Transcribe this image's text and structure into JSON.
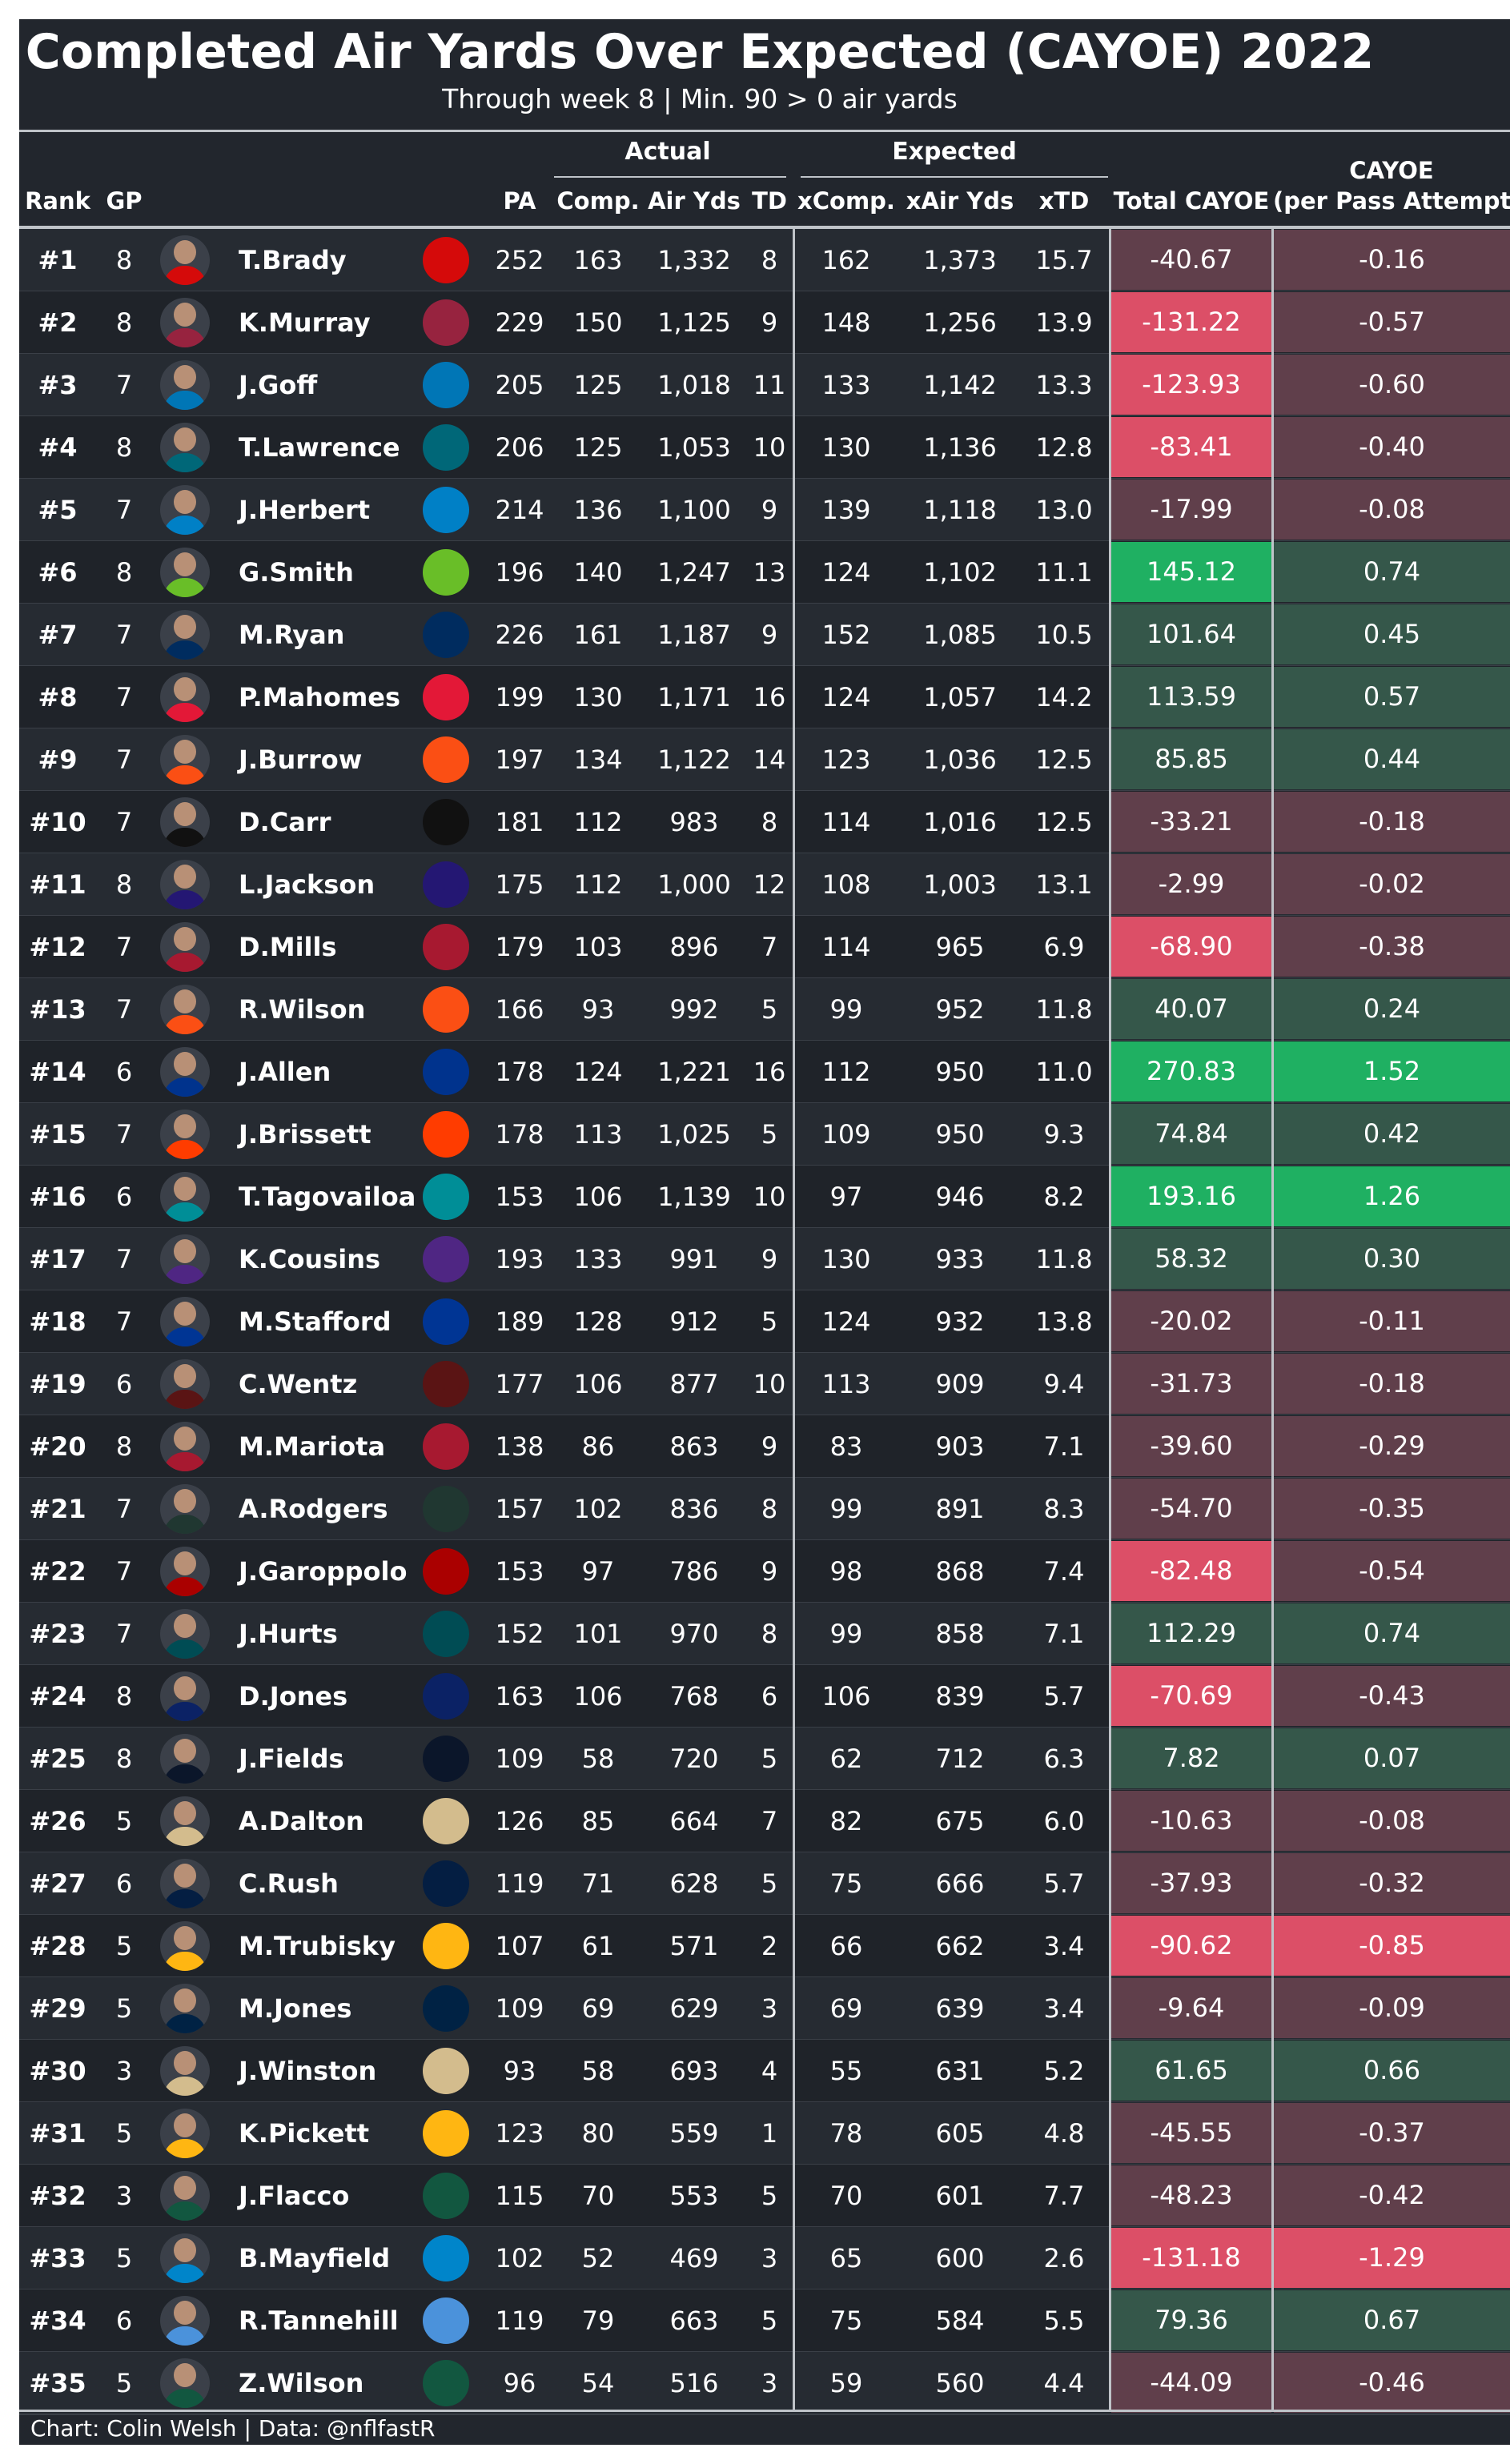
{
  "title": "Completed Air Yards Over Expected (CAYOE) 2022",
  "subtitle": "Through week 8 | Min. 90 > 0 air yards",
  "groups": {
    "actual": "Actual",
    "expected": "Expected"
  },
  "columns": {
    "rank": "Rank",
    "gp": "GP",
    "pa": "PA",
    "comp": "Comp.",
    "air_yds": "Air Yds",
    "td": "TD",
    "xcomp": "xComp.",
    "xair_yds": "xAir Yds",
    "xtd": "xTD",
    "total_cayoe": "Total CAYOE",
    "cayoe_line1": "CAYOE",
    "cayoe_line2": "(per Pass Attempt)"
  },
  "footer": "Chart: Colin Welsh | Data: @nflfastR",
  "colors": {
    "panel": "#22262d",
    "strong_neg": "#dc4f67",
    "weak_neg": "#603f4b",
    "mid_neg": "#8a3a4f",
    "weak_pos": "#35574a",
    "strong_pos": "#1fb062"
  },
  "chart_data": {
    "type": "table",
    "rows": [
      {
        "rank": "#1",
        "gp": "8",
        "player": "T.Brady",
        "team_logo": "buccaneers-logo",
        "team_color": "#d50a0a",
        "pa": "252",
        "comp": "163",
        "air_yds": "1,332",
        "td": "8",
        "xcomp": "162",
        "xair_yds": "1,373",
        "xtd": "15.7",
        "total_cayoe": "-40.67",
        "per_pa": "-0.16"
      },
      {
        "rank": "#2",
        "gp": "8",
        "player": "K.Murray",
        "team_logo": "cardinals-logo",
        "team_color": "#97233f",
        "pa": "229",
        "comp": "150",
        "air_yds": "1,125",
        "td": "9",
        "xcomp": "148",
        "xair_yds": "1,256",
        "xtd": "13.9",
        "total_cayoe": "-131.22",
        "per_pa": "-0.57"
      },
      {
        "rank": "#3",
        "gp": "7",
        "player": "J.Goff",
        "team_logo": "lions-logo",
        "team_color": "#0076b6",
        "pa": "205",
        "comp": "125",
        "air_yds": "1,018",
        "td": "11",
        "xcomp": "133",
        "xair_yds": "1,142",
        "xtd": "13.3",
        "total_cayoe": "-123.93",
        "per_pa": "-0.60"
      },
      {
        "rank": "#4",
        "gp": "8",
        "player": "T.Lawrence",
        "team_logo": "jaguars-logo",
        "team_color": "#006778",
        "pa": "206",
        "comp": "125",
        "air_yds": "1,053",
        "td": "10",
        "xcomp": "130",
        "xair_yds": "1,136",
        "xtd": "12.8",
        "total_cayoe": "-83.41",
        "per_pa": "-0.40"
      },
      {
        "rank": "#5",
        "gp": "7",
        "player": "J.Herbert",
        "team_logo": "chargers-logo",
        "team_color": "#0080c6",
        "pa": "214",
        "comp": "136",
        "air_yds": "1,100",
        "td": "9",
        "xcomp": "139",
        "xair_yds": "1,118",
        "xtd": "13.0",
        "total_cayoe": "-17.99",
        "per_pa": "-0.08"
      },
      {
        "rank": "#6",
        "gp": "8",
        "player": "G.Smith",
        "team_logo": "seahawks-logo",
        "team_color": "#69be28",
        "pa": "196",
        "comp": "140",
        "air_yds": "1,247",
        "td": "13",
        "xcomp": "124",
        "xair_yds": "1,102",
        "xtd": "11.1",
        "total_cayoe": "145.12",
        "per_pa": "0.74"
      },
      {
        "rank": "#7",
        "gp": "7",
        "player": "M.Ryan",
        "team_logo": "colts-logo",
        "team_color": "#002c5f",
        "pa": "226",
        "comp": "161",
        "air_yds": "1,187",
        "td": "9",
        "xcomp": "152",
        "xair_yds": "1,085",
        "xtd": "10.5",
        "total_cayoe": "101.64",
        "per_pa": "0.45"
      },
      {
        "rank": "#8",
        "gp": "7",
        "player": "P.Mahomes",
        "team_logo": "chiefs-logo",
        "team_color": "#e31837",
        "pa": "199",
        "comp": "130",
        "air_yds": "1,171",
        "td": "16",
        "xcomp": "124",
        "xair_yds": "1,057",
        "xtd": "14.2",
        "total_cayoe": "113.59",
        "per_pa": "0.57"
      },
      {
        "rank": "#9",
        "gp": "7",
        "player": "J.Burrow",
        "team_logo": "bengals-logo",
        "team_color": "#fb4f14",
        "pa": "197",
        "comp": "134",
        "air_yds": "1,122",
        "td": "14",
        "xcomp": "123",
        "xair_yds": "1,036",
        "xtd": "12.5",
        "total_cayoe": "85.85",
        "per_pa": "0.44"
      },
      {
        "rank": "#10",
        "gp": "7",
        "player": "D.Carr",
        "team_logo": "raiders-logo",
        "team_color": "#111111",
        "pa": "181",
        "comp": "112",
        "air_yds": "983",
        "td": "8",
        "xcomp": "114",
        "xair_yds": "1,016",
        "xtd": "12.5",
        "total_cayoe": "-33.21",
        "per_pa": "-0.18"
      },
      {
        "rank": "#11",
        "gp": "8",
        "player": "L.Jackson",
        "team_logo": "ravens-logo",
        "team_color": "#241773",
        "pa": "175",
        "comp": "112",
        "air_yds": "1,000",
        "td": "12",
        "xcomp": "108",
        "xair_yds": "1,003",
        "xtd": "13.1",
        "total_cayoe": "-2.99",
        "per_pa": "-0.02"
      },
      {
        "rank": "#12",
        "gp": "7",
        "player": "D.Mills",
        "team_logo": "texans-logo",
        "team_color": "#a71930",
        "pa": "179",
        "comp": "103",
        "air_yds": "896",
        "td": "7",
        "xcomp": "114",
        "xair_yds": "965",
        "xtd": "6.9",
        "total_cayoe": "-68.90",
        "per_pa": "-0.38"
      },
      {
        "rank": "#13",
        "gp": "7",
        "player": "R.Wilson",
        "team_logo": "broncos-logo",
        "team_color": "#fb4f14",
        "pa": "166",
        "comp": "93",
        "air_yds": "992",
        "td": "5",
        "xcomp": "99",
        "xair_yds": "952",
        "xtd": "11.8",
        "total_cayoe": "40.07",
        "per_pa": "0.24"
      },
      {
        "rank": "#14",
        "gp": "6",
        "player": "J.Allen",
        "team_logo": "bills-logo",
        "team_color": "#00338d",
        "pa": "178",
        "comp": "124",
        "air_yds": "1,221",
        "td": "16",
        "xcomp": "112",
        "xair_yds": "950",
        "xtd": "11.0",
        "total_cayoe": "270.83",
        "per_pa": "1.52"
      },
      {
        "rank": "#15",
        "gp": "7",
        "player": "J.Brissett",
        "team_logo": "browns-logo",
        "team_color": "#ff3c00",
        "pa": "178",
        "comp": "113",
        "air_yds": "1,025",
        "td": "5",
        "xcomp": "109",
        "xair_yds": "950",
        "xtd": "9.3",
        "total_cayoe": "74.84",
        "per_pa": "0.42"
      },
      {
        "rank": "#16",
        "gp": "6",
        "player": "T.Tagovailoa",
        "team_logo": "dolphins-logo",
        "team_color": "#008e97",
        "pa": "153",
        "comp": "106",
        "air_yds": "1,139",
        "td": "10",
        "xcomp": "97",
        "xair_yds": "946",
        "xtd": "8.2",
        "total_cayoe": "193.16",
        "per_pa": "1.26"
      },
      {
        "rank": "#17",
        "gp": "7",
        "player": "K.Cousins",
        "team_logo": "vikings-logo",
        "team_color": "#4f2683",
        "pa": "193",
        "comp": "133",
        "air_yds": "991",
        "td": "9",
        "xcomp": "130",
        "xair_yds": "933",
        "xtd": "11.8",
        "total_cayoe": "58.32",
        "per_pa": "0.30"
      },
      {
        "rank": "#18",
        "gp": "7",
        "player": "M.Stafford",
        "team_logo": "rams-logo",
        "team_color": "#003594",
        "pa": "189",
        "comp": "128",
        "air_yds": "912",
        "td": "5",
        "xcomp": "124",
        "xair_yds": "932",
        "xtd": "13.8",
        "total_cayoe": "-20.02",
        "per_pa": "-0.11"
      },
      {
        "rank": "#19",
        "gp": "6",
        "player": "C.Wentz",
        "team_logo": "commanders-logo",
        "team_color": "#5a1414",
        "pa": "177",
        "comp": "106",
        "air_yds": "877",
        "td": "10",
        "xcomp": "113",
        "xair_yds": "909",
        "xtd": "9.4",
        "total_cayoe": "-31.73",
        "per_pa": "-0.18"
      },
      {
        "rank": "#20",
        "gp": "8",
        "player": "M.Mariota",
        "team_logo": "falcons-logo",
        "team_color": "#a71930",
        "pa": "138",
        "comp": "86",
        "air_yds": "863",
        "td": "9",
        "xcomp": "83",
        "xair_yds": "903",
        "xtd": "7.1",
        "total_cayoe": "-39.60",
        "per_pa": "-0.29"
      },
      {
        "rank": "#21",
        "gp": "7",
        "player": "A.Rodgers",
        "team_logo": "packers-logo",
        "team_color": "#203731",
        "pa": "157",
        "comp": "102",
        "air_yds": "836",
        "td": "8",
        "xcomp": "99",
        "xair_yds": "891",
        "xtd": "8.3",
        "total_cayoe": "-54.70",
        "per_pa": "-0.35"
      },
      {
        "rank": "#22",
        "gp": "7",
        "player": "J.Garoppolo",
        "team_logo": "49ers-logo",
        "team_color": "#aa0000",
        "pa": "153",
        "comp": "97",
        "air_yds": "786",
        "td": "9",
        "xcomp": "98",
        "xair_yds": "868",
        "xtd": "7.4",
        "total_cayoe": "-82.48",
        "per_pa": "-0.54"
      },
      {
        "rank": "#23",
        "gp": "7",
        "player": "J.Hurts",
        "team_logo": "eagles-logo",
        "team_color": "#004c54",
        "pa": "152",
        "comp": "101",
        "air_yds": "970",
        "td": "8",
        "xcomp": "99",
        "xair_yds": "858",
        "xtd": "7.1",
        "total_cayoe": "112.29",
        "per_pa": "0.74"
      },
      {
        "rank": "#24",
        "gp": "8",
        "player": "D.Jones",
        "team_logo": "giants-logo",
        "team_color": "#0b2265",
        "pa": "163",
        "comp": "106",
        "air_yds": "768",
        "td": "6",
        "xcomp": "106",
        "xair_yds": "839",
        "xtd": "5.7",
        "total_cayoe": "-70.69",
        "per_pa": "-0.43"
      },
      {
        "rank": "#25",
        "gp": "8",
        "player": "J.Fields",
        "team_logo": "bears-logo",
        "team_color": "#0b162a",
        "pa": "109",
        "comp": "58",
        "air_yds": "720",
        "td": "5",
        "xcomp": "62",
        "xair_yds": "712",
        "xtd": "6.3",
        "total_cayoe": "7.82",
        "per_pa": "0.07"
      },
      {
        "rank": "#26",
        "gp": "5",
        "player": "A.Dalton",
        "team_logo": "saints-logo",
        "team_color": "#d3bc8d",
        "pa": "126",
        "comp": "85",
        "air_yds": "664",
        "td": "7",
        "xcomp": "82",
        "xair_yds": "675",
        "xtd": "6.0",
        "total_cayoe": "-10.63",
        "per_pa": "-0.08"
      },
      {
        "rank": "#27",
        "gp": "6",
        "player": "C.Rush",
        "team_logo": "cowboys-logo",
        "team_color": "#041e42",
        "pa": "119",
        "comp": "71",
        "air_yds": "628",
        "td": "5",
        "xcomp": "75",
        "xair_yds": "666",
        "xtd": "5.7",
        "total_cayoe": "-37.93",
        "per_pa": "-0.32"
      },
      {
        "rank": "#28",
        "gp": "5",
        "player": "M.Trubisky",
        "team_logo": "steelers-logo",
        "team_color": "#ffb612",
        "pa": "107",
        "comp": "61",
        "air_yds": "571",
        "td": "2",
        "xcomp": "66",
        "xair_yds": "662",
        "xtd": "3.4",
        "total_cayoe": "-90.62",
        "per_pa": "-0.85"
      },
      {
        "rank": "#29",
        "gp": "5",
        "player": "M.Jones",
        "team_logo": "patriots-logo",
        "team_color": "#002244",
        "pa": "109",
        "comp": "69",
        "air_yds": "629",
        "td": "3",
        "xcomp": "69",
        "xair_yds": "639",
        "xtd": "3.4",
        "total_cayoe": "-9.64",
        "per_pa": "-0.09"
      },
      {
        "rank": "#30",
        "gp": "3",
        "player": "J.Winston",
        "team_logo": "saints-logo",
        "team_color": "#d3bc8d",
        "pa": "93",
        "comp": "58",
        "air_yds": "693",
        "td": "4",
        "xcomp": "55",
        "xair_yds": "631",
        "xtd": "5.2",
        "total_cayoe": "61.65",
        "per_pa": "0.66"
      },
      {
        "rank": "#31",
        "gp": "5",
        "player": "K.Pickett",
        "team_logo": "steelers-logo",
        "team_color": "#ffb612",
        "pa": "123",
        "comp": "80",
        "air_yds": "559",
        "td": "1",
        "xcomp": "78",
        "xair_yds": "605",
        "xtd": "4.8",
        "total_cayoe": "-45.55",
        "per_pa": "-0.37"
      },
      {
        "rank": "#32",
        "gp": "3",
        "player": "J.Flacco",
        "team_logo": "jets-logo",
        "team_color": "#125740",
        "pa": "115",
        "comp": "70",
        "air_yds": "553",
        "td": "5",
        "xcomp": "70",
        "xair_yds": "601",
        "xtd": "7.7",
        "total_cayoe": "-48.23",
        "per_pa": "-0.42"
      },
      {
        "rank": "#33",
        "gp": "5",
        "player": "B.Mayfield",
        "team_logo": "panthers-logo",
        "team_color": "#0085ca",
        "pa": "102",
        "comp": "52",
        "air_yds": "469",
        "td": "3",
        "xcomp": "65",
        "xair_yds": "600",
        "xtd": "2.6",
        "total_cayoe": "-131.18",
        "per_pa": "-1.29"
      },
      {
        "rank": "#34",
        "gp": "6",
        "player": "R.Tannehill",
        "team_logo": "titans-logo",
        "team_color": "#4b92db",
        "pa": "119",
        "comp": "79",
        "air_yds": "663",
        "td": "5",
        "xcomp": "75",
        "xair_yds": "584",
        "xtd": "5.5",
        "total_cayoe": "79.36",
        "per_pa": "0.67"
      },
      {
        "rank": "#35",
        "gp": "5",
        "player": "Z.Wilson",
        "team_logo": "jets-logo",
        "team_color": "#125740",
        "pa": "96",
        "comp": "54",
        "air_yds": "516",
        "td": "3",
        "xcomp": "59",
        "xair_yds": "560",
        "xtd": "4.4",
        "total_cayoe": "-44.09",
        "per_pa": "-0.46"
      }
    ]
  }
}
